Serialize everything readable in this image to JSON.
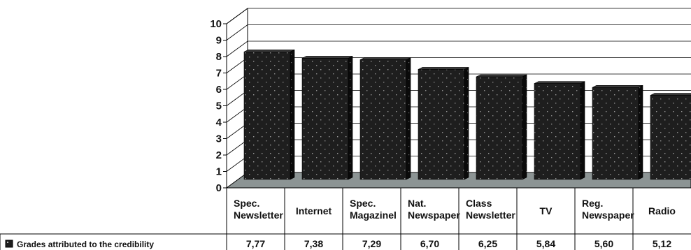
{
  "chart_data": {
    "type": "bar",
    "categories": [
      [
        "Spec.",
        "Newsletter"
      ],
      [
        "Internet"
      ],
      [
        "Spec.",
        "Magazinel"
      ],
      [
        "Nat.",
        "Newspaper"
      ],
      [
        "Class",
        "Newsletter"
      ],
      [
        "TV"
      ],
      [
        "Reg.",
        "Newspaper"
      ],
      [
        "Radio"
      ]
    ],
    "series": [
      {
        "name": "Grades attributed to the credibility",
        "values": [
          7.77,
          7.38,
          7.29,
          6.7,
          6.25,
          5.84,
          5.6,
          5.12
        ],
        "labels": [
          "7,77",
          "7,38",
          "7,29",
          "6,70",
          "6,25",
          "5,84",
          "5,60",
          "5,12"
        ]
      }
    ],
    "ylim": [
      0,
      10
    ],
    "yticks": [
      "0",
      "1",
      "2",
      "3",
      "4",
      "5",
      "6",
      "7",
      "8",
      "9",
      "10"
    ],
    "grid": true,
    "style": "3d-columns",
    "colors": {
      "bar_front": "#1e1e1e",
      "bar_side": "#0a0a0a",
      "bar_top": "#3a3a3a",
      "floor": "#8c9494",
      "grid": "#000000"
    },
    "legend": "in data table"
  }
}
